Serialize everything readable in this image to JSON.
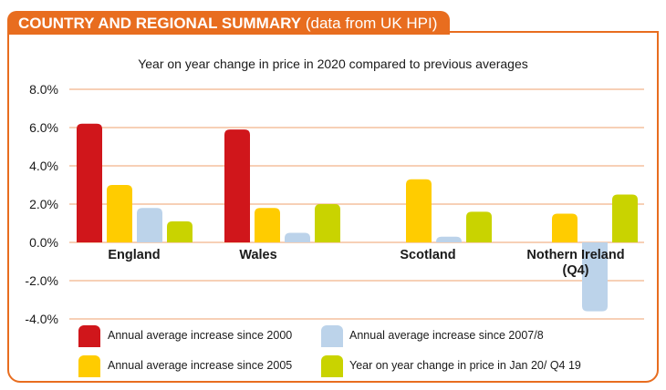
{
  "header": {
    "title_bold": "COUNTRY AND REGIONAL SUMMARY",
    "title_normal": "(data from UK HPI)",
    "accent_color": "#e86d1f"
  },
  "chart_data": {
    "type": "bar",
    "title": "Year on year change in price in 2020 compared to previous averages",
    "categories": [
      "England",
      "Wales",
      "Scotland",
      "Nothern Ireland (Q4)"
    ],
    "category_lines": [
      [
        "England"
      ],
      [
        "Wales"
      ],
      [
        "Scotland"
      ],
      [
        "Nothern Ireland",
        "(Q4)"
      ]
    ],
    "ylim": [
      -4,
      8
    ],
    "yticks": [
      8,
      6,
      4,
      2,
      0,
      -2,
      -4
    ],
    "ytick_labels": [
      "8.0%",
      "6.0%",
      "4.0%",
      "2.0%",
      "0.0%",
      "-2.0%",
      "-4.0%"
    ],
    "xlabel": "",
    "ylabel": "",
    "grid": true,
    "series": [
      {
        "name": "Annual average increase since 2000",
        "color": "#d0161b",
        "values": [
          6.2,
          5.9,
          null,
          null
        ]
      },
      {
        "name": "Annual average increase since 2005",
        "color": "#ffcc00",
        "values": [
          3.0,
          1.8,
          3.3,
          1.5
        ]
      },
      {
        "name": "Annual average increase since 2007/8",
        "color": "#bcd3ea",
        "values": [
          1.8,
          0.5,
          0.3,
          -3.6
        ]
      },
      {
        "name": "Year on year change in price in Jan 20/ Q4 19",
        "color": "#c9d300",
        "values": [
          1.1,
          2.0,
          1.6,
          2.5
        ]
      }
    ]
  }
}
